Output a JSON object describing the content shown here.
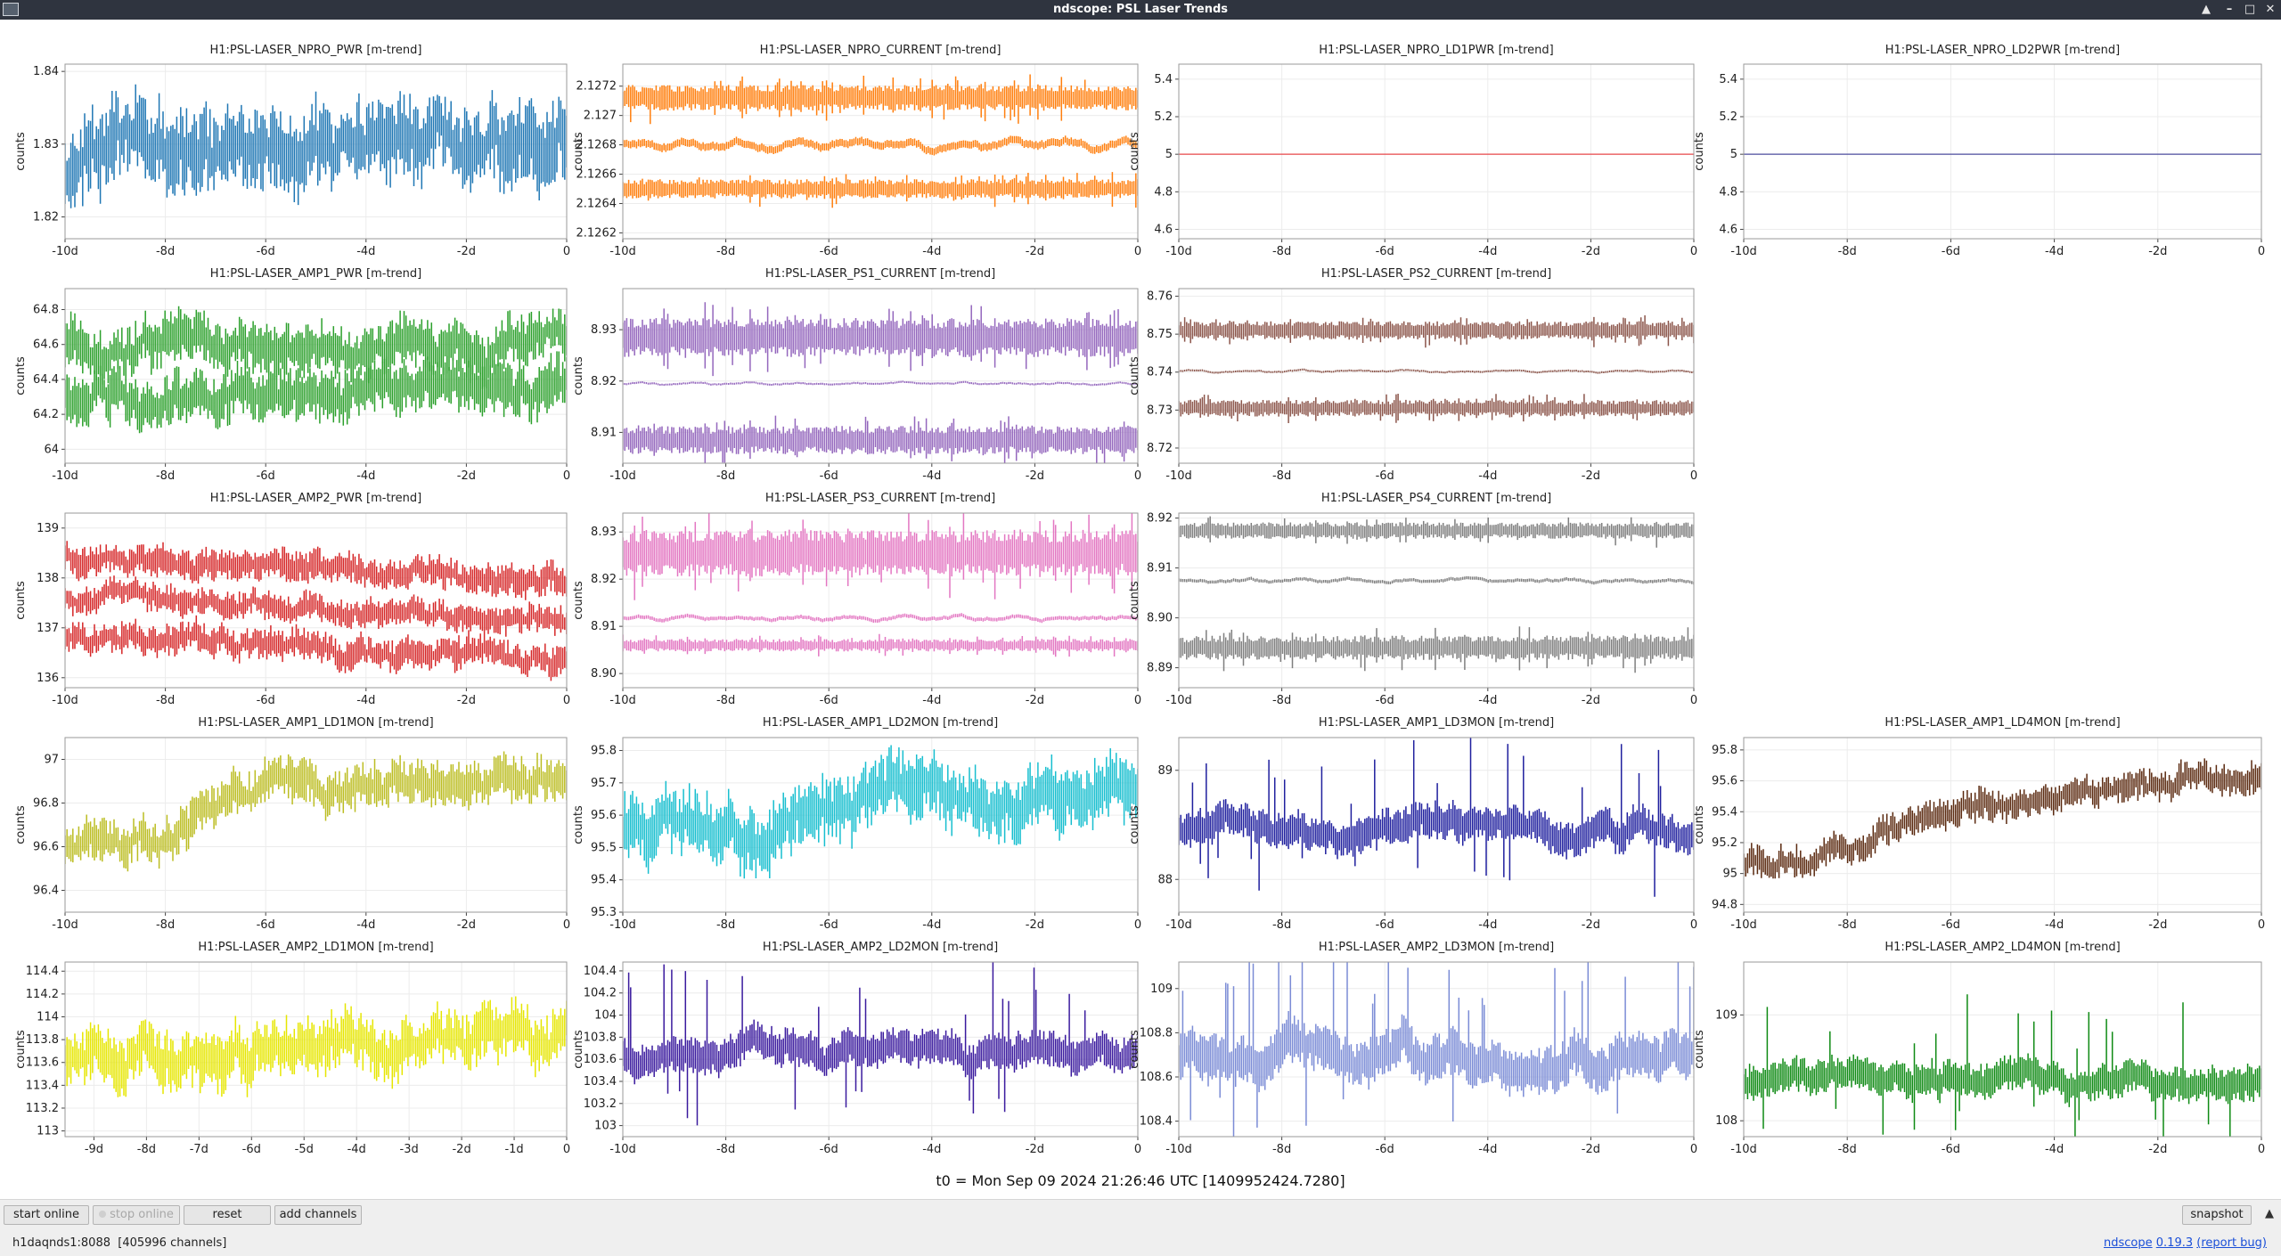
{
  "window": {
    "title": "ndscope: PSL Laser Trends"
  },
  "y_label": "counts",
  "t0_label": "t0 = Mon Sep 09 2024 21:26:46 UTC [1409952424.7280]",
  "buttons": {
    "start_online": "start online",
    "stop_online": "stop online",
    "reset": "reset",
    "add_channels": "add channels",
    "snapshot": "snapshot"
  },
  "status": {
    "server": "h1daqnds1:8088",
    "channels": "[405996 channels]"
  },
  "version": {
    "app": "ndscope",
    "version": "0.19.3",
    "report": "(report bug)"
  },
  "chart_data": [
    {
      "type": "line",
      "title": "H1:PSL-LASER_NPRO_PWR [m-trend]",
      "color": "#1f77b4",
      "row": 0,
      "col": 0,
      "mode": "noisy",
      "yticks": [
        "1.82",
        "1.83",
        "1.84"
      ],
      "ylim": [
        1.817,
        1.841
      ],
      "xticks": [
        "-10d",
        "-8d",
        "-6d",
        "-4d",
        "-2d",
        "0"
      ],
      "series": [
        {
          "center": 1.826,
          "amp": 0.005,
          "trend": [
            0,
            0.004,
            0.005,
            0.005,
            0.004,
            0.004,
            0.005,
            0.004,
            0.003,
            0.004
          ]
        }
      ]
    },
    {
      "type": "line",
      "title": "H1:PSL-LASER_NPRO_CURRENT [m-trend]",
      "color": "#ff7f0e",
      "row": 0,
      "col": 1,
      "mode": "bands",
      "yticks": [
        "2.1262",
        "2.1264",
        "2.1266",
        "2.1268",
        "2.127",
        "2.1272"
      ],
      "ylim": [
        2.12616,
        2.12735
      ],
      "xticks": [
        "-10d",
        "-8d",
        "-6d",
        "-4d",
        "-2d",
        "0"
      ],
      "series": [
        {
          "center": 2.12712,
          "amp": 8e-05,
          "trend": [
            0,
            0,
            0,
            0,
            0,
            0,
            0,
            0,
            0,
            0
          ]
        },
        {
          "center": 2.1268,
          "amp": 4e-05,
          "trend": [
            0,
            0,
            0,
            0,
            0,
            0,
            0,
            0,
            0,
            0
          ]
        },
        {
          "center": 2.1265,
          "amp": 6e-05,
          "trend": [
            0,
            0,
            0,
            0,
            0,
            0,
            0,
            0,
            0,
            0
          ]
        }
      ]
    },
    {
      "type": "line",
      "title": "H1:PSL-LASER_NPRO_LD1PWR [m-trend]",
      "color": "#e8474a",
      "row": 0,
      "col": 2,
      "mode": "flat",
      "yticks": [
        "4.6",
        "4.8",
        "5",
        "5.2",
        "5.4"
      ],
      "ylim": [
        4.55,
        5.48
      ],
      "xticks": [
        "-10d",
        "-8d",
        "-6d",
        "-4d",
        "-2d",
        "0"
      ],
      "series": [
        {
          "center": 5.0,
          "amp": 0,
          "trend": [
            0,
            0,
            0,
            0,
            0,
            0,
            0,
            0,
            0,
            0
          ]
        }
      ]
    },
    {
      "type": "line",
      "title": "H1:PSL-LASER_NPRO_LD2PWR [m-trend]",
      "color": "#4d4d9e",
      "row": 0,
      "col": 3,
      "mode": "flat",
      "yticks": [
        "4.6",
        "4.8",
        "5",
        "5.2",
        "5.4"
      ],
      "ylim": [
        4.55,
        5.48
      ],
      "xticks": [
        "-10d",
        "-8d",
        "-6d",
        "-4d",
        "-2d",
        "0"
      ],
      "series": [
        {
          "center": 5.0,
          "amp": 0,
          "trend": [
            0,
            0,
            0,
            0,
            0,
            0,
            0,
            0,
            0,
            0
          ]
        }
      ]
    },
    {
      "type": "line",
      "title": "H1:PSL-LASER_AMP1_PWR [m-trend]",
      "color": "#2ca02c",
      "row": 1,
      "col": 0,
      "mode": "noisy",
      "yticks": [
        "64",
        "64.2",
        "64.4",
        "64.6",
        "64.8"
      ],
      "ylim": [
        63.92,
        64.92
      ],
      "xticks": [
        "-10d",
        "-8d",
        "-6d",
        "-4d",
        "-2d",
        "0"
      ],
      "series": [
        {
          "center": 64.6,
          "amp": 0.13,
          "trend": [
            0,
            0,
            0,
            0,
            0,
            0,
            0,
            0,
            0,
            0
          ]
        },
        {
          "center": 64.32,
          "amp": 0.13,
          "trend": [
            0,
            0,
            0,
            0,
            0,
            0,
            0,
            0,
            0,
            0
          ]
        }
      ]
    },
    {
      "type": "line",
      "title": "H1:PSL-LASER_PS1_CURRENT [m-trend]",
      "color": "#9467bd",
      "row": 1,
      "col": 1,
      "mode": "bands",
      "yticks": [
        "8.91",
        "8.92",
        "8.93"
      ],
      "ylim": [
        8.904,
        8.938
      ],
      "xticks": [
        "-10d",
        "-8d",
        "-6d",
        "-4d",
        "-2d",
        "0"
      ],
      "series": [
        {
          "center": 8.9285,
          "amp": 0.0035,
          "trend": [
            0,
            0,
            0,
            0,
            0,
            0,
            0,
            0,
            0,
            0
          ]
        },
        {
          "center": 8.9195,
          "amp": 0.0003,
          "trend": [
            0,
            0,
            0,
            0,
            0,
            0,
            0,
            0,
            0,
            0
          ]
        },
        {
          "center": 8.9085,
          "amp": 0.0025,
          "trend": [
            0,
            0,
            0,
            0,
            0,
            0,
            0,
            0,
            0,
            0
          ]
        }
      ]
    },
    {
      "type": "line",
      "title": "H1:PSL-LASER_PS2_CURRENT [m-trend]",
      "color": "#8c564b",
      "row": 1,
      "col": 2,
      "mode": "bands",
      "yticks": [
        "8.72",
        "8.73",
        "8.74",
        "8.75",
        "8.76"
      ],
      "ylim": [
        8.716,
        8.762
      ],
      "xticks": [
        "-10d",
        "-8d",
        "-6d",
        "-4d",
        "-2d",
        "0"
      ],
      "series": [
        {
          "center": 8.751,
          "amp": 0.0022,
          "trend": [
            0,
            0,
            0,
            0,
            0,
            0,
            0,
            0,
            0,
            0
          ]
        },
        {
          "center": 8.7402,
          "amp": 0.0004,
          "trend": [
            0,
            0,
            0,
            0,
            0,
            0,
            0,
            0,
            0,
            0
          ]
        },
        {
          "center": 8.7305,
          "amp": 0.002,
          "trend": [
            0,
            0,
            0,
            0,
            0,
            0,
            0,
            0,
            0,
            0
          ]
        }
      ]
    },
    {
      "type": "line",
      "title": "H1:PSL-LASER_AMP2_PWR [m-trend]",
      "color": "#d62728",
      "row": 2,
      "col": 0,
      "mode": "noisy",
      "yticks": [
        "136",
        "137",
        "138",
        "139"
      ],
      "ylim": [
        135.8,
        139.3
      ],
      "xticks": [
        "-10d",
        "-8d",
        "-6d",
        "-4d",
        "-2d",
        "0"
      ],
      "series": [
        {
          "center": 138.25,
          "amp": 0.28,
          "trend": [
            0.15,
            0.1,
            0.05,
            0,
            -0.05,
            -0.1,
            -0.15,
            -0.2,
            -0.25,
            -0.3
          ]
        },
        {
          "center": 137.5,
          "amp": 0.25,
          "trend": [
            0.1,
            0.05,
            0,
            -0.05,
            -0.1,
            -0.15,
            -0.2,
            -0.25,
            -0.3,
            -0.35
          ]
        },
        {
          "center": 136.75,
          "amp": 0.28,
          "trend": [
            0.1,
            0.05,
            0,
            -0.05,
            -0.1,
            -0.15,
            -0.2,
            -0.25,
            -0.3,
            -0.35
          ]
        }
      ]
    },
    {
      "type": "line",
      "title": "H1:PSL-LASER_PS3_CURRENT [m-trend]",
      "color": "#e377c2",
      "row": 2,
      "col": 1,
      "mode": "bands",
      "yticks": [
        "8.90",
        "8.91",
        "8.92",
        "8.93"
      ],
      "ylim": [
        8.897,
        8.934
      ],
      "xticks": [
        "-10d",
        "-8d",
        "-6d",
        "-4d",
        "-2d",
        "0"
      ],
      "series": [
        {
          "center": 8.9255,
          "amp": 0.0045,
          "trend": [
            0,
            0,
            0,
            0,
            0,
            0,
            0,
            0,
            0,
            0
          ]
        },
        {
          "center": 8.9118,
          "amp": 0.0006,
          "trend": [
            0,
            0,
            0,
            0,
            0,
            0,
            0,
            0,
            0,
            0
          ]
        },
        {
          "center": 8.906,
          "amp": 0.0012,
          "trend": [
            0,
            0,
            0,
            0,
            0,
            0,
            0,
            0,
            0,
            0
          ]
        }
      ]
    },
    {
      "type": "line",
      "title": "H1:PSL-LASER_PS4_CURRENT [m-trend]",
      "color": "#7f7f7f",
      "row": 2,
      "col": 2,
      "mode": "bands",
      "yticks": [
        "8.89",
        "8.90",
        "8.91",
        "8.92"
      ],
      "ylim": [
        8.886,
        8.921
      ],
      "xticks": [
        "-10d",
        "-8d",
        "-6d",
        "-4d",
        "-2d",
        "0"
      ],
      "series": [
        {
          "center": 8.9175,
          "amp": 0.0015,
          "trend": [
            0,
            0,
            0,
            0,
            0,
            0,
            0,
            0,
            0,
            0
          ]
        },
        {
          "center": 8.9075,
          "amp": 0.0005,
          "trend": [
            0,
            0,
            0,
            0,
            0,
            0,
            0,
            0,
            0,
            0
          ]
        },
        {
          "center": 8.894,
          "amp": 0.0022,
          "trend": [
            0,
            0,
            0,
            0,
            0,
            0,
            0,
            0,
            0,
            0
          ]
        }
      ]
    },
    {
      "type": "line",
      "title": "H1:PSL-LASER_AMP1_LD1MON [m-trend]",
      "color": "#bcbd22",
      "row": 3,
      "col": 0,
      "mode": "noisy",
      "yticks": [
        "96.4",
        "96.6",
        "96.8",
        "97"
      ],
      "ylim": [
        96.3,
        97.1
      ],
      "xticks": [
        "-10d",
        "-8d",
        "-6d",
        "-4d",
        "-2d",
        "0"
      ],
      "series": [
        {
          "center": 96.62,
          "amp": 0.09,
          "trend": [
            0,
            0,
            0.05,
            0.2,
            0.25,
            0.25,
            0.27,
            0.28,
            0.3,
            0.33
          ]
        }
      ]
    },
    {
      "type": "line",
      "title": "H1:PSL-LASER_AMP1_LD2MON [m-trend]",
      "color": "#17becf",
      "row": 3,
      "col": 1,
      "mode": "noisy",
      "yticks": [
        "95.3",
        "95.4",
        "95.5",
        "95.6",
        "95.7",
        "95.8"
      ],
      "ylim": [
        95.3,
        95.84
      ],
      "xticks": [
        "-10d",
        "-8d",
        "-6d",
        "-4d",
        "-2d",
        "0"
      ],
      "series": [
        {
          "center": 95.55,
          "amp": 0.09,
          "trend": [
            0,
            0,
            0,
            0.02,
            0.08,
            0.12,
            0.12,
            0.1,
            0.12,
            0.14
          ]
        }
      ]
    },
    {
      "type": "line",
      "title": "H1:PSL-LASER_AMP1_LD3MON [m-trend]",
      "color": "#1f1f9e",
      "row": 3,
      "col": 2,
      "mode": "spiky",
      "yticks": [
        "88",
        "89"
      ],
      "ylim": [
        87.7,
        89.3
      ],
      "xticks": [
        "-10d",
        "-8d",
        "-6d",
        "-4d",
        "-2d",
        "0"
      ],
      "series": [
        {
          "center": 88.45,
          "amp": 0.12,
          "trend": [
            0,
            0,
            0,
            0,
            0,
            0,
            0,
            0,
            0,
            0
          ]
        }
      ]
    },
    {
      "type": "line",
      "title": "H1:PSL-LASER_AMP1_LD4MON [m-trend]",
      "color": "#5b2a10",
      "row": 3,
      "col": 3,
      "mode": "noisy",
      "yticks": [
        "94.8",
        "95",
        "95.2",
        "95.4",
        "95.6",
        "95.8"
      ],
      "ylim": [
        94.75,
        95.88
      ],
      "xticks": [
        "-10d",
        "-8d",
        "-6d",
        "-4d",
        "-2d",
        "0"
      ],
      "series": [
        {
          "center": 95.1,
          "amp": 0.09,
          "trend": [
            0,
            -0.05,
            0.1,
            0.25,
            0.33,
            0.4,
            0.45,
            0.48,
            0.5,
            0.55
          ]
        }
      ]
    },
    {
      "type": "line",
      "title": "H1:PSL-LASER_AMP2_LD1MON [m-trend]",
      "color": "#e6e600",
      "row": 4,
      "col": 0,
      "mode": "noisy",
      "yticks": [
        "113",
        "113.2",
        "113.4",
        "113.6",
        "113.8",
        "114",
        "114.2",
        "114.4"
      ],
      "ylim": [
        112.95,
        114.48
      ],
      "xticks": [
        "-9d",
        "-8d",
        "-7d",
        "-6d",
        "-5d",
        "-4d",
        "-3d",
        "-2d",
        "-1d",
        "0"
      ],
      "series": [
        {
          "center": 113.65,
          "amp": 0.22,
          "trend": [
            0,
            0.05,
            0.05,
            0.08,
            0.1,
            0.1,
            0.12,
            0.15,
            0.2,
            0.25
          ]
        }
      ]
    },
    {
      "type": "line",
      "title": "H1:PSL-LASER_AMP2_LD2MON [m-trend]",
      "color": "#3a1a9e",
      "row": 4,
      "col": 1,
      "mode": "spiky",
      "yticks": [
        "103",
        "103.2",
        "103.4",
        "103.6",
        "103.8",
        "104",
        "104.2",
        "104.4"
      ],
      "ylim": [
        102.9,
        104.48
      ],
      "xticks": [
        "-10d",
        "-8d",
        "-6d",
        "-4d",
        "-2d",
        "0"
      ],
      "series": [
        {
          "center": 103.65,
          "amp": 0.12,
          "trend": [
            0,
            0,
            0,
            0,
            0,
            0,
            0,
            0,
            0,
            0
          ]
        }
      ]
    },
    {
      "type": "line",
      "title": "H1:PSL-LASER_AMP2_LD3MON [m-trend]",
      "color": "#7b8cd6",
      "row": 4,
      "col": 2,
      "mode": "spiky",
      "yticks": [
        "108.4",
        "108.6",
        "108.8",
        "109"
      ],
      "ylim": [
        108.33,
        109.12
      ],
      "xticks": [
        "-10d",
        "-8d",
        "-6d",
        "-4d",
        "-2d",
        "0"
      ],
      "series": [
        {
          "center": 108.7,
          "amp": 0.08,
          "trend": [
            0,
            0,
            0,
            0,
            0,
            0,
            0,
            0,
            0,
            0
          ]
        }
      ]
    },
    {
      "type": "line",
      "title": "H1:PSL-LASER_AMP2_LD4MON [m-trend]",
      "color": "#0f8a14",
      "row": 4,
      "col": 3,
      "mode": "spiky",
      "yticks": [
        "108",
        "109"
      ],
      "ylim": [
        107.85,
        109.5
      ],
      "xticks": [
        "-10d",
        "-8d",
        "-6d",
        "-4d",
        "-2d",
        "0"
      ],
      "series": [
        {
          "center": 108.35,
          "amp": 0.12,
          "trend": [
            0,
            0,
            0,
            0,
            0,
            0,
            0,
            0,
            0,
            0
          ]
        }
      ]
    }
  ]
}
